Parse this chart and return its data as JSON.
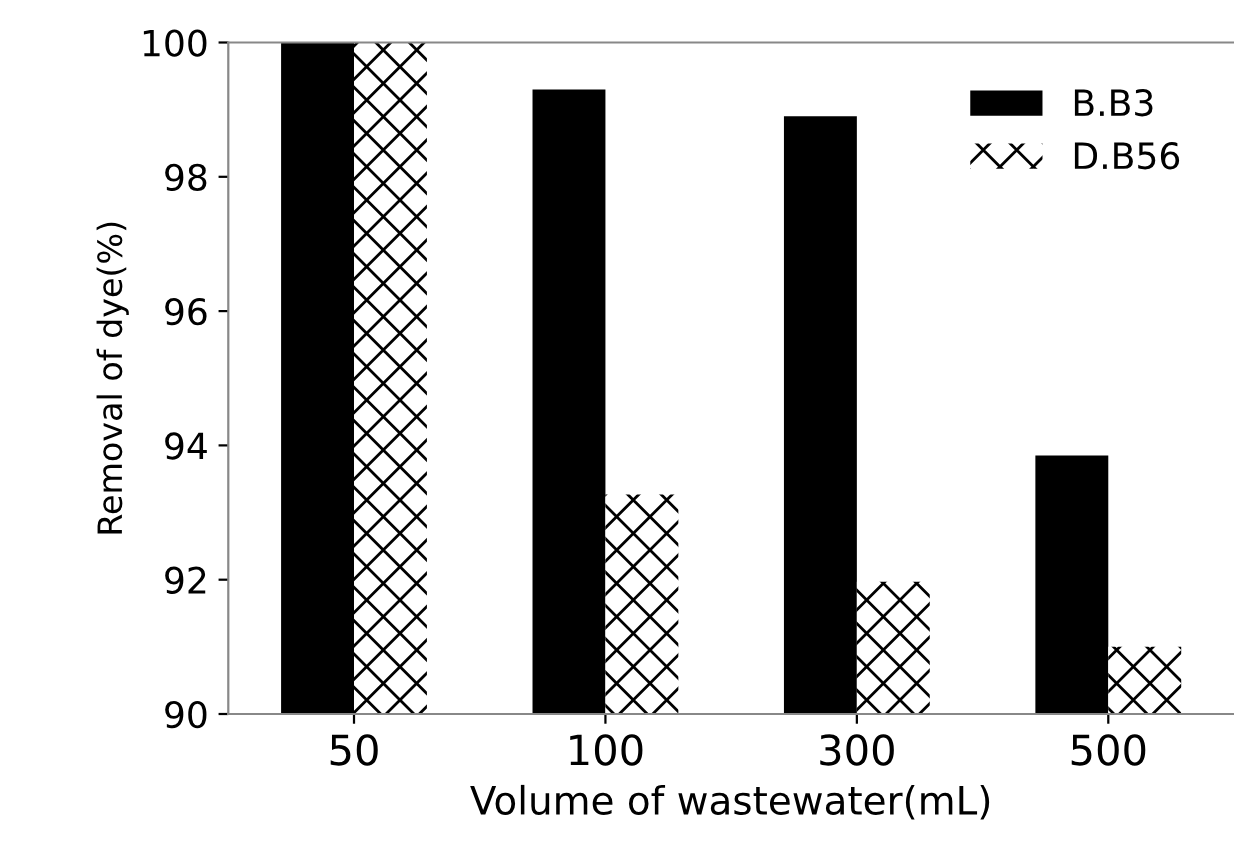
{
  "chart_data": {
    "type": "bar",
    "xlabel": "Volume of wastewater(mL)",
    "ylabel": "Removal of dye(%)",
    "categories": [
      "50",
      "100",
      "300",
      "500"
    ],
    "series": [
      {
        "name": "B.B3",
        "color": "#000000",
        "values": [
          100,
          99.3,
          98.9,
          93.85
        ]
      },
      {
        "name": "D.B56",
        "color": "#000000",
        "values": [
          100,
          93.27,
          91.97,
          91.0
        ]
      }
    ],
    "ylim": [
      90,
      100
    ],
    "yticks": [
      90,
      92,
      94,
      96,
      98,
      100
    ],
    "grid": false,
    "legend": "top right"
  }
}
